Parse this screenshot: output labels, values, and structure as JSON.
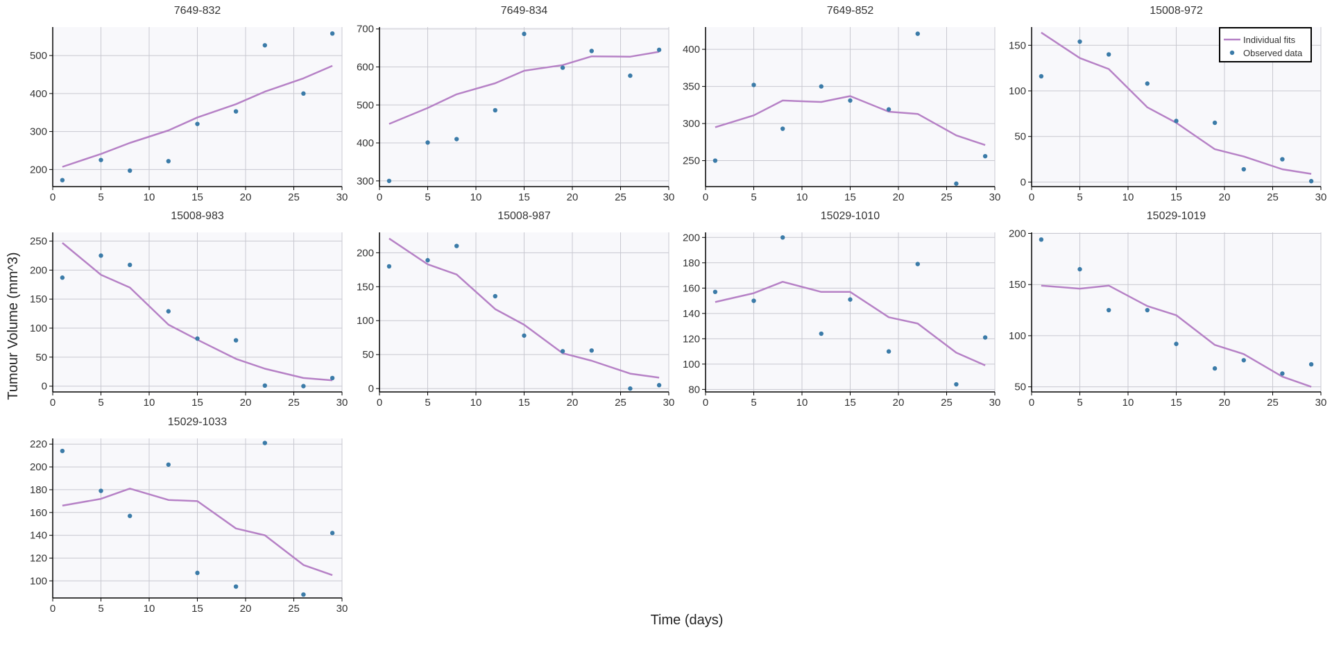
{
  "figure": {
    "xlabel": "Time (days)",
    "ylabel": "Tumour Volume (mm^3)"
  },
  "legend": {
    "fit_label": "Individual fits",
    "obs_label": "Observed data",
    "position": "top-right"
  },
  "colors": {
    "fit": "#b681c6",
    "observed": "#3b7ba8",
    "plot_bg": "#f8f8fb",
    "grid": "#c8c8d0",
    "axis": "#000000"
  },
  "chart_data": [
    {
      "type": "scatter",
      "title": "7649-832",
      "xlim": [
        0,
        30
      ],
      "ylim": [
        155,
        575
      ],
      "xticks": [
        0,
        5,
        10,
        15,
        20,
        25,
        30
      ],
      "yticks": [
        200,
        300,
        400,
        500
      ],
      "observed": {
        "x": [
          1,
          5,
          8,
          12,
          15,
          19,
          22,
          26,
          29
        ],
        "y": [
          172,
          225,
          197,
          222,
          320,
          353,
          527,
          400,
          558
        ]
      },
      "fit": {
        "x": [
          1,
          5,
          8,
          12,
          15,
          19,
          22,
          26,
          29
        ],
        "y": [
          207,
          241,
          270,
          303,
          337,
          372,
          405,
          440,
          473
        ]
      }
    },
    {
      "type": "scatter",
      "title": "7649-834",
      "xlim": [
        0,
        30
      ],
      "ylim": [
        285,
        705
      ],
      "xticks": [
        0,
        5,
        10,
        15,
        20,
        25,
        30
      ],
      "yticks": [
        300,
        400,
        500,
        600,
        700
      ],
      "observed": {
        "x": [
          1,
          5,
          8,
          12,
          15,
          19,
          22,
          26,
          29
        ],
        "y": [
          300,
          401,
          410,
          486,
          687,
          598,
          642,
          577,
          645
        ]
      },
      "fit": {
        "x": [
          1,
          5,
          8,
          12,
          15,
          19,
          22,
          26,
          29
        ],
        "y": [
          450,
          492,
          528,
          557,
          590,
          605,
          628,
          627,
          640
        ]
      }
    },
    {
      "type": "scatter",
      "title": "7649-852",
      "xlim": [
        0,
        30
      ],
      "ylim": [
        215,
        430
      ],
      "xticks": [
        0,
        5,
        10,
        15,
        20,
        25,
        30
      ],
      "yticks": [
        250,
        300,
        350,
        400
      ],
      "observed": {
        "x": [
          1,
          5,
          8,
          12,
          15,
          19,
          22,
          26,
          29
        ],
        "y": [
          250,
          352,
          293,
          350,
          331,
          319,
          421,
          219,
          256
        ]
      },
      "fit": {
        "x": [
          1,
          5,
          8,
          12,
          15,
          19,
          22,
          26,
          29
        ],
        "y": [
          295,
          311,
          331,
          329,
          337,
          316,
          313,
          284,
          271
        ]
      }
    },
    {
      "type": "scatter",
      "title": "15008-972",
      "xlim": [
        0,
        30
      ],
      "ylim": [
        -5,
        170
      ],
      "xticks": [
        0,
        5,
        10,
        15,
        20,
        25,
        30
      ],
      "yticks": [
        0,
        50,
        100,
        150
      ],
      "observed": {
        "x": [
          1,
          5,
          8,
          12,
          15,
          19,
          22,
          26,
          29
        ],
        "y": [
          116,
          154,
          140,
          108,
          67,
          65,
          14,
          25,
          1
        ]
      },
      "fit": {
        "x": [
          1,
          5,
          8,
          12,
          15,
          19,
          22,
          26,
          29
        ],
        "y": [
          164,
          136,
          124,
          82,
          65,
          36,
          28,
          14,
          9
        ]
      }
    },
    {
      "type": "scatter",
      "title": "15008-983",
      "xlim": [
        0,
        30
      ],
      "ylim": [
        -10,
        265
      ],
      "xticks": [
        0,
        5,
        10,
        15,
        20,
        25,
        30
      ],
      "yticks": [
        0,
        50,
        100,
        150,
        200,
        250
      ],
      "observed": {
        "x": [
          1,
          5,
          8,
          12,
          15,
          19,
          22,
          26,
          29
        ],
        "y": [
          187,
          225,
          209,
          129,
          82,
          79,
          1,
          0,
          14
        ]
      },
      "fit": {
        "x": [
          1,
          5,
          8,
          12,
          15,
          19,
          22,
          26,
          29
        ],
        "y": [
          247,
          192,
          170,
          106,
          80,
          47,
          30,
          14,
          10
        ]
      }
    },
    {
      "type": "scatter",
      "title": "15008-987",
      "xlim": [
        0,
        30
      ],
      "ylim": [
        -5,
        230
      ],
      "xticks": [
        0,
        5,
        10,
        15,
        20,
        25,
        30
      ],
      "yticks": [
        0,
        50,
        100,
        150,
        200
      ],
      "observed": {
        "x": [
          1,
          5,
          8,
          12,
          15,
          19,
          22,
          26,
          29
        ],
        "y": [
          180,
          189,
          210,
          136,
          78,
          55,
          56,
          0,
          5
        ]
      },
      "fit": {
        "x": [
          1,
          5,
          8,
          12,
          15,
          19,
          22,
          26,
          29
        ],
        "y": [
          221,
          183,
          168,
          117,
          94,
          52,
          41,
          22,
          16
        ]
      }
    },
    {
      "type": "scatter",
      "title": "15029-1010",
      "xlim": [
        0,
        30
      ],
      "ylim": [
        78,
        204
      ],
      "xticks": [
        0,
        5,
        10,
        15,
        20,
        25,
        30
      ],
      "yticks": [
        80,
        100,
        120,
        140,
        160,
        180,
        200
      ],
      "observed": {
        "x": [
          1,
          5,
          8,
          12,
          15,
          19,
          22,
          26,
          29
        ],
        "y": [
          157,
          150,
          200,
          124,
          151,
          110,
          179,
          84,
          121
        ]
      },
      "fit": {
        "x": [
          1,
          5,
          8,
          12,
          15,
          19,
          22,
          26,
          29
        ],
        "y": [
          149,
          156,
          165,
          157,
          157,
          137,
          132,
          109,
          99
        ]
      }
    },
    {
      "type": "scatter",
      "title": "15029-1019",
      "xlim": [
        0,
        30
      ],
      "ylim": [
        45,
        201
      ],
      "xticks": [
        0,
        5,
        10,
        15,
        20,
        25,
        30
      ],
      "yticks": [
        50,
        100,
        150,
        200
      ],
      "observed": {
        "x": [
          1,
          5,
          8,
          12,
          15,
          19,
          22,
          26,
          29
        ],
        "y": [
          194,
          165,
          125,
          125,
          92,
          68,
          76,
          63,
          72
        ]
      },
      "fit": {
        "x": [
          1,
          5,
          8,
          12,
          15,
          19,
          22,
          26,
          29
        ],
        "y": [
          149,
          146,
          149,
          129,
          120,
          91,
          82,
          60,
          50
        ]
      }
    },
    {
      "type": "scatter",
      "title": "15029-1033",
      "xlim": [
        0,
        30
      ],
      "ylim": [
        85,
        225
      ],
      "xticks": [
        0,
        5,
        10,
        15,
        20,
        25,
        30
      ],
      "yticks": [
        100,
        120,
        140,
        160,
        180,
        200,
        220
      ],
      "observed": {
        "x": [
          1,
          5,
          8,
          12,
          15,
          19,
          22,
          26,
          29
        ],
        "y": [
          214,
          179,
          157,
          202,
          107,
          95,
          221,
          88,
          142
        ]
      },
      "fit": {
        "x": [
          1,
          5,
          8,
          12,
          15,
          19,
          22,
          26,
          29
        ],
        "y": [
          166,
          172,
          181,
          171,
          170,
          146,
          140,
          114,
          105
        ]
      }
    }
  ]
}
